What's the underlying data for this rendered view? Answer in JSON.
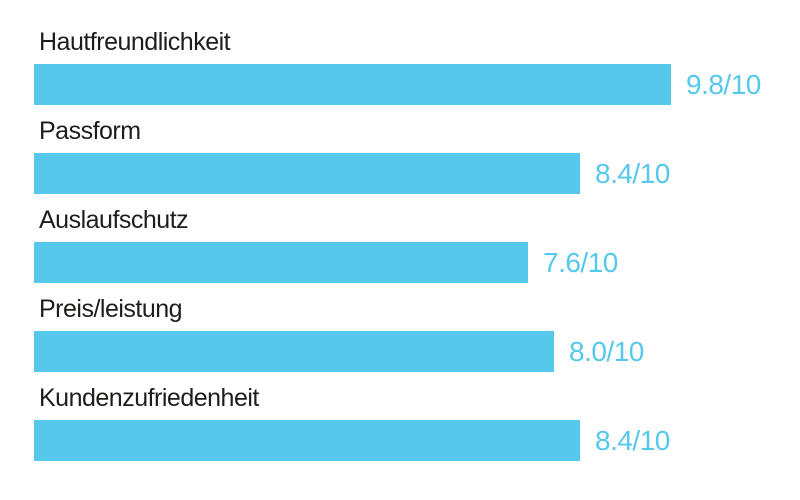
{
  "chart_data": {
    "type": "bar",
    "orientation": "horizontal",
    "title": "",
    "xlabel": "",
    "ylabel": "",
    "categories": [
      "Hautfreundlichkeit",
      "Passform",
      "Auslaufschutz",
      "Preis/leistung",
      "Kundenzufriedenheit"
    ],
    "values": [
      9.8,
      8.4,
      7.6,
      8.0,
      8.4
    ],
    "value_labels": [
      "9.8/10",
      "8.4/10",
      "7.6/10",
      "8.0/10",
      "8.4/10"
    ],
    "scale_max": 10,
    "xlim": [
      0,
      10
    ],
    "grid": false,
    "legend": false,
    "colors": {
      "bar": "#55c8ec",
      "value_text": "#55c8ec",
      "category_text": "#1d1d1b",
      "background": "#ffffff"
    }
  }
}
